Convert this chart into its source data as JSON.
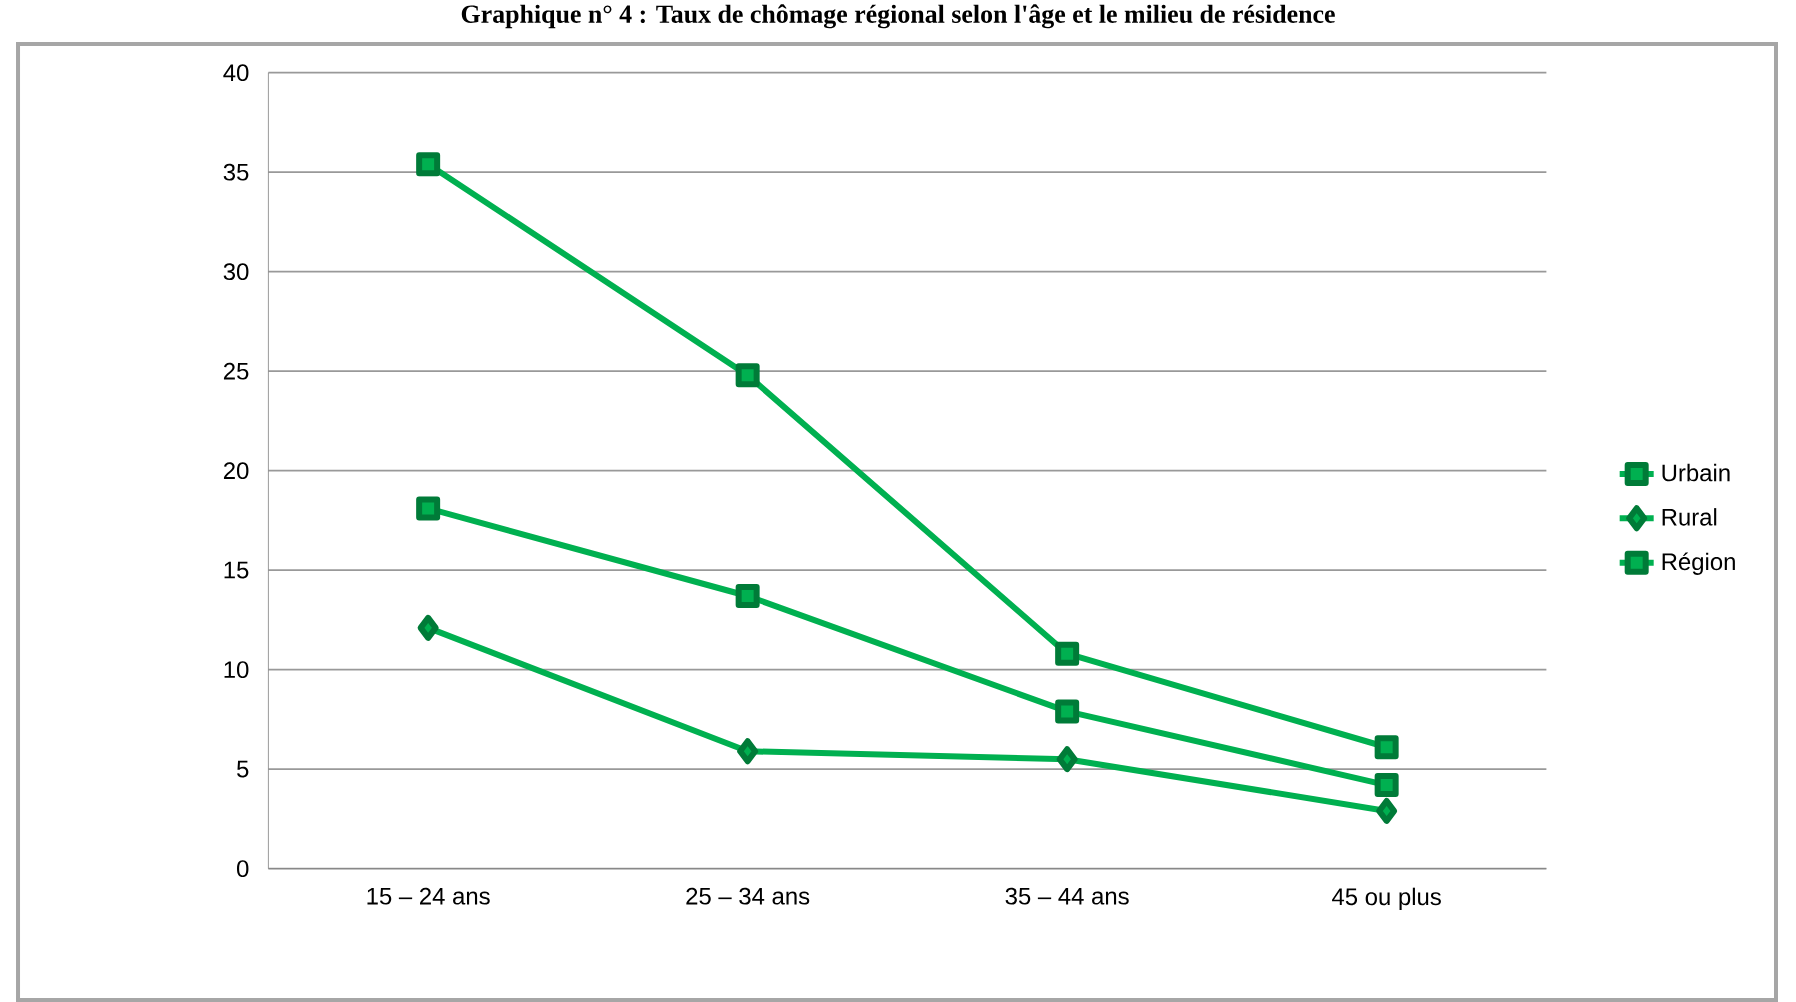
{
  "chart_data": {
    "type": "line",
    "title": "Graphique n° 4 : Taux de chômage régional selon l'âge et le milieu de résidence",
    "categories": [
      "15 – 24 ans",
      "25 – 34 ans",
      "35 – 44 ans",
      "45 ou plus"
    ],
    "series": [
      {
        "name": "Urbain",
        "color": "#00b050",
        "marker": "square",
        "values": [
          35.4,
          24.8,
          10.8,
          6.1
        ]
      },
      {
        "name": "Rural",
        "color": "#00b050",
        "marker": "diamond",
        "values": [
          12.1,
          5.9,
          5.5,
          2.9
        ]
      },
      {
        "name": "Région",
        "color": "#00b050",
        "marker": "square",
        "values": [
          18.1,
          13.7,
          7.9,
          4.2
        ]
      }
    ],
    "ylim": [
      0,
      40
    ],
    "yticks": [
      0,
      5,
      10,
      15,
      20,
      25,
      30,
      35,
      40
    ],
    "grid": "y",
    "legend": "right",
    "line_style": "solid"
  }
}
